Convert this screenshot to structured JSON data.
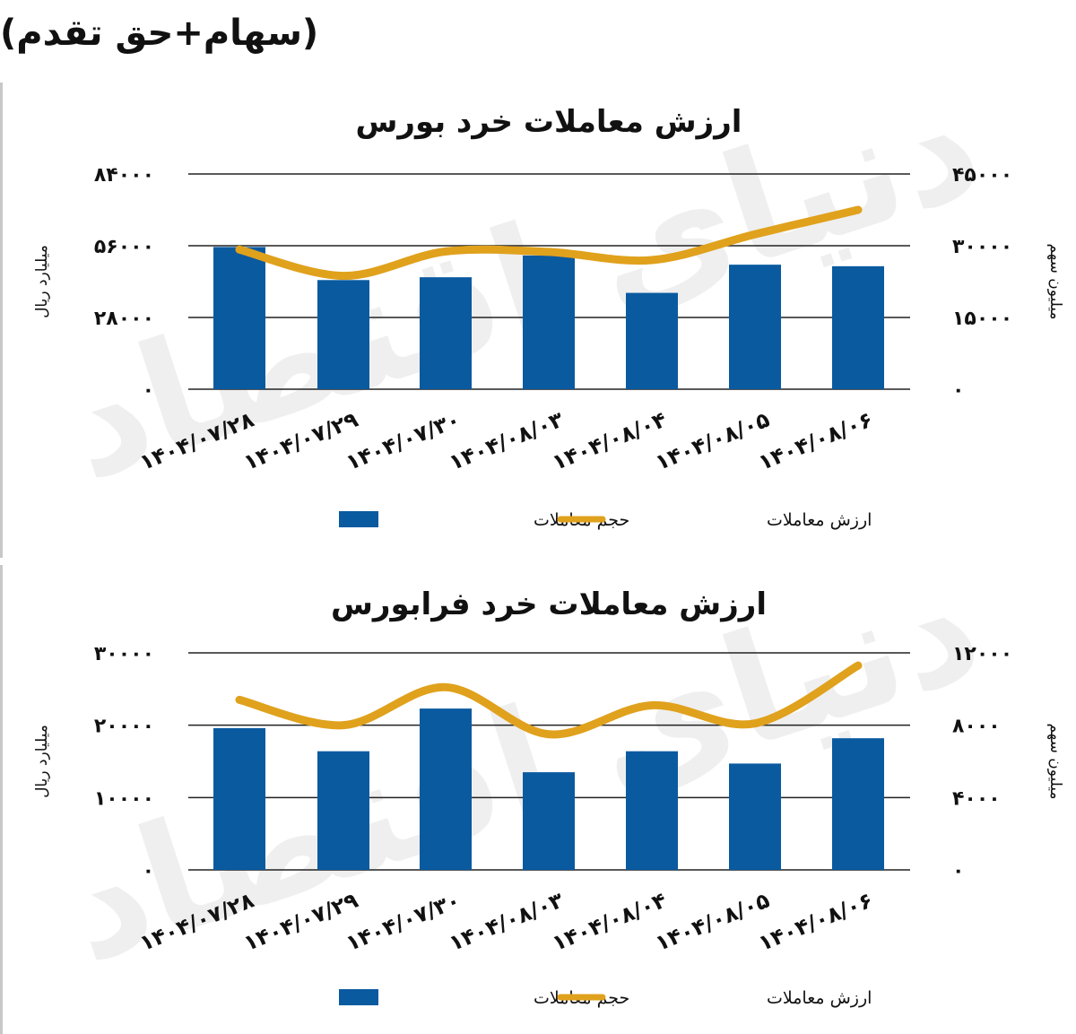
{
  "header_note": "(سهام+حق تقدم)",
  "legend": {
    "bars": "حجم معاملات",
    "line": "ارزش معاملات"
  },
  "chart_data": [
    {
      "type": "bar+line",
      "title": "ارزش معاملات خرد بورس",
      "ylabel_left": "میلیارد ریال",
      "ylabel_right": "میلیون سهم",
      "categories": [
        "۱۴۰۴/۰۷/۲۸",
        "۱۴۰۴/۰۷/۲۹",
        "۱۴۰۴/۰۷/۳۰",
        "۱۴۰۴/۰۸/۰۳",
        "۱۴۰۴/۰۸/۰۴",
        "۱۴۰۴/۰۸/۰۵",
        "۱۴۰۴/۰۸/۰۶"
      ],
      "left_ticks": [
        "۰",
        "۲۸۰۰۰",
        "۵۶۰۰۰",
        "۸۴۰۰۰"
      ],
      "right_ticks": [
        "۰",
        "۱۵۰۰۰",
        "۳۰۰۰۰",
        "۴۵۰۰۰"
      ],
      "left_ylim": [
        0,
        84000
      ],
      "right_ylim": [
        0,
        45000
      ],
      "series": [
        {
          "name": "حجم معاملات",
          "type": "bar",
          "axis": "left",
          "values": [
            55500,
            42600,
            43700,
            52200,
            37600,
            48600,
            48000
          ]
        },
        {
          "name": "ارزش معاملات",
          "type": "line",
          "axis": "right",
          "values": [
            29200,
            23700,
            28800,
            28700,
            27000,
            32400,
            37500
          ]
        }
      ],
      "grid": true,
      "legend_position": "bottom"
    },
    {
      "type": "bar+line",
      "title": "ارزش معاملات خرد فرابورس",
      "ylabel_left": "میلیارد ریال",
      "ylabel_right": "میلیون سهم",
      "categories": [
        "۱۴۰۴/۰۷/۲۸",
        "۱۴۰۴/۰۷/۲۹",
        "۱۴۰۴/۰۷/۳۰",
        "۱۴۰۴/۰۸/۰۳",
        "۱۴۰۴/۰۸/۰۴",
        "۱۴۰۴/۰۸/۰۵",
        "۱۴۰۴/۰۸/۰۶"
      ],
      "left_ticks": [
        "۰",
        "۱۰۰۰۰",
        "۲۰۰۰۰",
        "۳۰۰۰۰"
      ],
      "right_ticks": [
        "۰",
        "۴۰۰۰",
        "۸۰۰۰",
        "۱۲۰۰۰"
      ],
      "left_ylim": [
        0,
        30000
      ],
      "right_ylim": [
        0,
        12000
      ],
      "series": [
        {
          "name": "حجم معاملات",
          "type": "bar",
          "axis": "left",
          "values": [
            19600,
            16400,
            22300,
            13500,
            16400,
            14700,
            18200
          ]
        },
        {
          "name": "ارزش معاملات",
          "type": "line",
          "axis": "right",
          "values": [
            9400,
            8000,
            10100,
            7500,
            9100,
            8100,
            11300
          ]
        }
      ],
      "grid": true,
      "legend_position": "bottom"
    }
  ],
  "colors": {
    "bar": "#0a5aa0",
    "line": "#e0a11c",
    "grid": "#222222",
    "text": "#111111"
  },
  "watermark": "دنیای اقتصاد"
}
